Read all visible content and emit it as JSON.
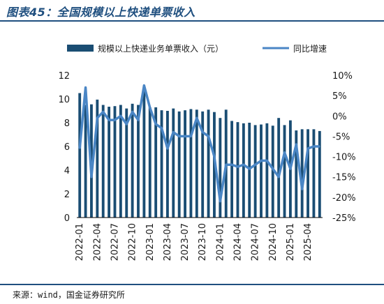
{
  "title": "图表45：全国规模以上快递单票收入",
  "source": "来源：wind，国金证券研究所",
  "colors": {
    "bar": "#1a4d73",
    "line": "#4a86c5",
    "accent": "#1f4f7f"
  },
  "chart_data": {
    "type": "bar",
    "legend_position": "top",
    "grid": false,
    "categories": [
      "2022-01",
      "2022-02",
      "2022-03",
      "2022-04",
      "2022-05",
      "2022-06",
      "2022-07",
      "2022-08",
      "2022-09",
      "2022-10",
      "2022-11",
      "2022-12",
      "2023-01",
      "2023-02",
      "2023-03",
      "2023-04",
      "2023-05",
      "2023-06",
      "2023-07",
      "2023-08",
      "2023-09",
      "2023-10",
      "2023-11",
      "2023-12",
      "2024-01",
      "2024-02",
      "2024-03",
      "2024-04",
      "2024-05",
      "2024-06",
      "2024-07",
      "2024-08",
      "2024-09",
      "2024-10",
      "2024-11",
      "2024-12",
      "2025-01",
      "2025-02",
      "2025-03",
      "2025-04",
      "2025-05",
      "2025-06"
    ],
    "x_tick_labels": [
      "2022-01",
      "2022-04",
      "2022-07",
      "2022-10",
      "2023-01",
      "2023-04",
      "2023-07",
      "2023-10",
      "2024-01",
      "2024-04",
      "2024-07",
      "2024-10",
      "2025-01",
      "2025-04"
    ],
    "series": [
      {
        "name": "规模以上快递业务单票收入（元）",
        "type": "bar",
        "axis": "left",
        "values": [
          10.5,
          9.5,
          9.55,
          9.95,
          9.5,
          9.35,
          9.4,
          9.5,
          9.2,
          9.6,
          9.5,
          10.7,
          9.3,
          9.3,
          9.05,
          9.0,
          9.2,
          8.95,
          9.05,
          9.15,
          9.1,
          8.95,
          9.1,
          8.9,
          8.4,
          9.1,
          8.15,
          8.05,
          7.95,
          8.0,
          7.8,
          7.85,
          7.95,
          7.75,
          8.4,
          7.8,
          8.2,
          7.35,
          7.45,
          7.45,
          7.45,
          7.3
        ]
      },
      {
        "name": "同比增速",
        "type": "line",
        "axis": "right",
        "values": [
          -8,
          7,
          -15,
          -0.5,
          1,
          -1,
          -1,
          0,
          -2,
          1,
          -1,
          7.5,
          2,
          -2,
          -3,
          -8,
          -4,
          -5,
          -5,
          -5,
          -0.5,
          -4,
          -5,
          -10,
          -21,
          -12,
          -12,
          -12.5,
          -12,
          -13,
          -12,
          -11,
          -11,
          -13,
          -15,
          -9,
          -13,
          -7,
          -18,
          -8,
          -7.5,
          -7.5
        ]
      }
    ],
    "y_left": {
      "min": 0,
      "max": 12,
      "ticks": [
        0,
        2,
        4,
        6,
        8,
        10,
        12
      ]
    },
    "y_right": {
      "min": -25,
      "max": 10,
      "ticks": [
        "10%",
        "5%",
        "0%",
        "-5%",
        "-10%",
        "-15%",
        "-20%",
        "-25%"
      ]
    }
  }
}
